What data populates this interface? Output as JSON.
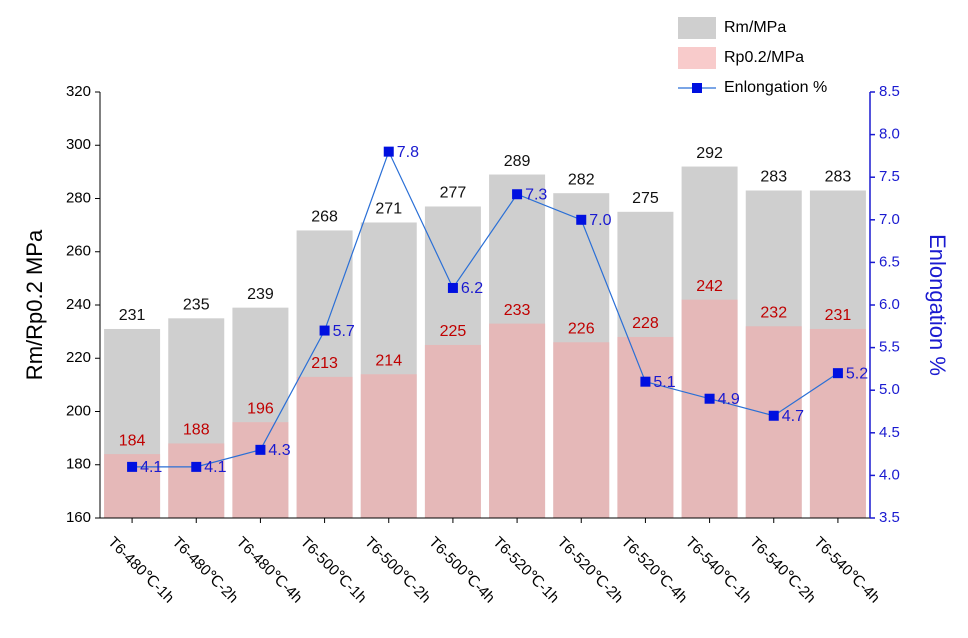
{
  "chart_data": {
    "type": "bar",
    "categories": [
      "T6-480℃-1h",
      "T6-480℃-2h",
      "T6-480℃-4h",
      "T6-500℃-1h",
      "T6-500℃-2h",
      "T6-500℃-4h",
      "T6-520℃-1h",
      "T6-520℃-2h",
      "T6-520℃-4h",
      "T6-540℃-1h",
      "T6-540℃-2h",
      "T6-540℃-4h"
    ],
    "series": [
      {
        "name": "Rm/MPa",
        "type": "bar",
        "color": "#cfcfcf",
        "label_color": "#111111",
        "values": [
          231,
          235,
          239,
          268,
          271,
          277,
          289,
          282,
          275,
          292,
          283,
          283
        ]
      },
      {
        "name": "Rp0.2/MPa",
        "type": "bar",
        "color": "#f3a9a9",
        "label_color": "#c00000",
        "values": [
          184,
          188,
          196,
          213,
          214,
          225,
          233,
          226,
          228,
          242,
          232,
          231
        ]
      },
      {
        "name": "Enlongation %",
        "type": "line",
        "axis": "y2",
        "color": "#2a6fd6",
        "marker_color": "#0010e0",
        "label_color": "#1a1ad0",
        "values": [
          4.1,
          4.1,
          4.3,
          5.7,
          7.8,
          6.2,
          7.3,
          7.0,
          5.1,
          4.9,
          4.7,
          5.2
        ],
        "value_labels": [
          "4.1",
          "4.1",
          "4.3",
          "5.7",
          "7.8",
          "6.2",
          "7.3",
          "7.0",
          "5.1",
          "4.9",
          "4.7",
          "5.2"
        ]
      }
    ],
    "y_label": "Rm/Rp0.2 MPa",
    "y2_label": "Enlongation %",
    "y2_color": "#1a1ad0",
    "ylim": [
      160,
      320
    ],
    "yticks": [
      160,
      180,
      200,
      220,
      240,
      260,
      280,
      300,
      320
    ],
    "y2lim": [
      3.5,
      8.5
    ],
    "y2ticks": [
      3.5,
      {
        "value": 4,
        "label": "4.0"
      },
      4.5,
      {
        "value": 5,
        "label": "5.0"
      },
      5.5,
      {
        "value": 6,
        "label": "6.0"
      },
      6.5,
      {
        "value": 7,
        "label": "7.0"
      },
      7.5,
      {
        "value": 8,
        "label": "8.0"
      },
      8.5
    ],
    "legend": "top-right"
  }
}
